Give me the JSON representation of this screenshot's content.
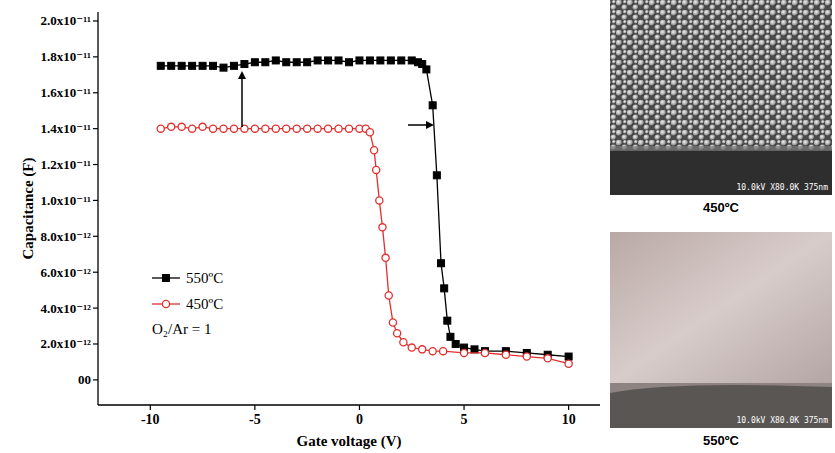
{
  "chart_data": {
    "type": "line",
    "x_label": "Gate voltage (V)",
    "y_label": "Capacitance (F)",
    "xlim": [
      -12.5,
      11.5
    ],
    "ylim": [
      -1.4e-12,
      2.05e-11
    ],
    "xticks": [
      -10,
      -5,
      0,
      5,
      10
    ],
    "yticks": [
      {
        "value": 0,
        "label": "00"
      },
      {
        "value": 2e-12,
        "label": "2.0x10⁻¹²"
      },
      {
        "value": 4e-12,
        "label": "4.0x10⁻¹²"
      },
      {
        "value": 6e-12,
        "label": "6.0x10⁻¹²"
      },
      {
        "value": 8e-12,
        "label": "8.0x10⁻¹²"
      },
      {
        "value": 1e-11,
        "label": "1.0x10⁻¹¹"
      },
      {
        "value": 1.2e-11,
        "label": "1.2x10⁻¹¹"
      },
      {
        "value": 1.4e-11,
        "label": "1.4x10⁻¹¹"
      },
      {
        "value": 1.6e-11,
        "label": "1.6x10⁻¹¹"
      },
      {
        "value": 1.8e-11,
        "label": "1.8x10⁻¹¹"
      },
      {
        "value": 2e-11,
        "label": "2.0x10⁻¹¹"
      }
    ],
    "grid": false,
    "legend": "lower left",
    "annotations": [
      "O₂/Ar = 1"
    ],
    "series": [
      {
        "name": "550ºC",
        "color": "#000000",
        "marker": "square",
        "line_style": "solid",
        "x": [
          -9.5,
          -9,
          -8.5,
          -8,
          -7.5,
          -7,
          -6.5,
          -6,
          -5.5,
          -5,
          -4.5,
          -4,
          -3.5,
          -3,
          -2.5,
          -2,
          -1.5,
          -1,
          -0.5,
          0,
          0.5,
          1,
          1.5,
          2,
          2.5,
          2.8,
          3.0,
          3.2,
          3.5,
          3.7,
          3.9,
          4.05,
          4.2,
          4.35,
          4.6,
          5,
          5.5,
          6,
          7,
          8,
          9,
          10
        ],
        "values": [
          1.75e-11,
          1.75e-11,
          1.75e-11,
          1.75e-11,
          1.75e-11,
          1.75e-11,
          1.74e-11,
          1.75e-11,
          1.76e-11,
          1.77e-11,
          1.77e-11,
          1.78e-11,
          1.77e-11,
          1.77e-11,
          1.77e-11,
          1.78e-11,
          1.78e-11,
          1.78e-11,
          1.77e-11,
          1.78e-11,
          1.78e-11,
          1.78e-11,
          1.78e-11,
          1.78e-11,
          1.78e-11,
          1.77e-11,
          1.76e-11,
          1.73e-11,
          1.53e-11,
          1.14e-11,
          6.5e-12,
          5.1e-12,
          3.3e-12,
          2.4e-12,
          2e-12,
          1.8e-12,
          1.7e-12,
          1.6e-12,
          1.6e-12,
          1.5e-12,
          1.4e-12,
          1.3e-12
        ]
      },
      {
        "name": "450ºC",
        "color": "#e03030",
        "marker": "circle",
        "line_style": "solid",
        "x": [
          -9.5,
          -9,
          -8.5,
          -8,
          -7.5,
          -7,
          -6.5,
          -6,
          -5.5,
          -5,
          -4.5,
          -4,
          -3.5,
          -3,
          -2.5,
          -2,
          -1.5,
          -1,
          -0.5,
          0,
          0.3,
          0.5,
          0.7,
          0.8,
          0.95,
          1.1,
          1.25,
          1.4,
          1.6,
          1.8,
          2.1,
          2.5,
          3,
          3.5,
          4,
          5,
          6,
          7,
          8,
          9,
          10
        ],
        "values": [
          1.4e-11,
          1.41e-11,
          1.41e-11,
          1.4e-11,
          1.41e-11,
          1.4e-11,
          1.4e-11,
          1.4e-11,
          1.4e-11,
          1.4e-11,
          1.4e-11,
          1.4e-11,
          1.4e-11,
          1.4e-11,
          1.4e-11,
          1.4e-11,
          1.4e-11,
          1.4e-11,
          1.4e-11,
          1.4e-11,
          1.4e-11,
          1.38e-11,
          1.28e-11,
          1.17e-11,
          1e-11,
          8.5e-12,
          6.8e-12,
          4.7e-12,
          3.2e-12,
          2.6e-12,
          2.1e-12,
          1.8e-12,
          1.7e-12,
          1.6e-12,
          1.6e-12,
          1.5e-12,
          1.5e-12,
          1.4e-12,
          1.3e-12,
          1.2e-12,
          9e-13
        ]
      }
    ]
  },
  "images": [
    {
      "caption": "450ºC",
      "info": "10.0kV X80.0K 375nm"
    },
    {
      "caption": "550ºC",
      "info": "10.0kV X80.0K 375nm"
    }
  ]
}
